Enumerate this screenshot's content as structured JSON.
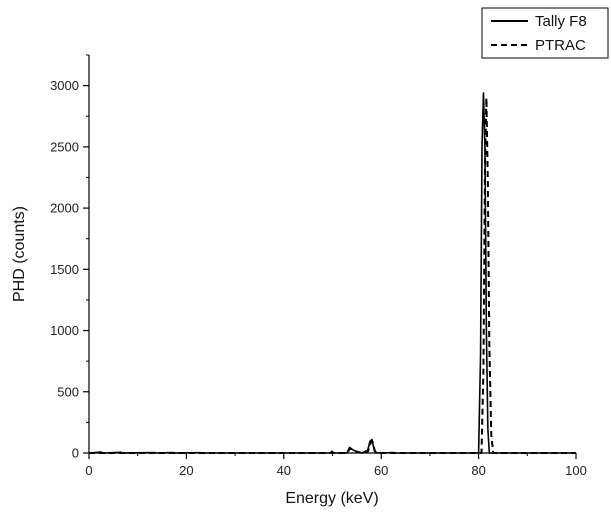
{
  "chart_data": {
    "type": "line",
    "title": "",
    "xlabel": "Energy (keV)",
    "ylabel": "PHD (counts)",
    "xlim": [
      0,
      100
    ],
    "ylim": [
      0,
      3250
    ],
    "x_ticks": [
      0,
      20,
      40,
      60,
      80,
      100
    ],
    "x_tick_labels": [
      "0",
      "20",
      "40",
      "60",
      "80",
      "100"
    ],
    "y_ticks": [
      0,
      500,
      1000,
      1500,
      2000,
      2500,
      3000
    ],
    "y_tick_labels": [
      "0",
      "500",
      "1000",
      "1500",
      "2000",
      "2500",
      "3000"
    ],
    "grid": false,
    "legend_position": "top-right",
    "series": [
      {
        "name": "Tally F8",
        "style": "solid",
        "color": "#000000",
        "points": [
          [
            0,
            0
          ],
          [
            2.5,
            8
          ],
          [
            2.8,
            0
          ],
          [
            6.5,
            6
          ],
          [
            6.8,
            0
          ],
          [
            13.5,
            4
          ],
          [
            13.8,
            0
          ],
          [
            17.2,
            4
          ],
          [
            17.5,
            0
          ],
          [
            23,
            3
          ],
          [
            23.3,
            0
          ],
          [
            49.6,
            0
          ],
          [
            49.9,
            15
          ],
          [
            50.2,
            0
          ],
          [
            53,
            0
          ],
          [
            53.5,
            45
          ],
          [
            54,
            30
          ],
          [
            55,
            10
          ],
          [
            56,
            0
          ],
          [
            57.2,
            20
          ],
          [
            57.7,
            95
          ],
          [
            58.1,
            110
          ],
          [
            58.6,
            20
          ],
          [
            59,
            0
          ],
          [
            62.5,
            4
          ],
          [
            62.8,
            0
          ],
          [
            80,
            0
          ],
          [
            80.4,
            800
          ],
          [
            80.7,
            2500
          ],
          [
            81,
            2940
          ],
          [
            81.3,
            2500
          ],
          [
            81.6,
            1000
          ],
          [
            81.9,
            200
          ],
          [
            82.2,
            0
          ],
          [
            100,
            0
          ]
        ]
      },
      {
        "name": "PTRAC",
        "style": "dashed",
        "color": "#000000",
        "points": [
          [
            0,
            0
          ],
          [
            53,
            0
          ],
          [
            53.6,
            40
          ],
          [
            54.2,
            25
          ],
          [
            55.2,
            8
          ],
          [
            56.2,
            0
          ],
          [
            57.3,
            15
          ],
          [
            57.8,
            80
          ],
          [
            58.2,
            95
          ],
          [
            58.7,
            15
          ],
          [
            59.1,
            0
          ],
          [
            80.6,
            0
          ],
          [
            81,
            700
          ],
          [
            81.3,
            2300
          ],
          [
            81.6,
            2900
          ],
          [
            81.9,
            2200
          ],
          [
            82.2,
            900
          ],
          [
            82.6,
            150
          ],
          [
            83,
            0
          ],
          [
            100,
            0
          ]
        ]
      }
    ]
  }
}
